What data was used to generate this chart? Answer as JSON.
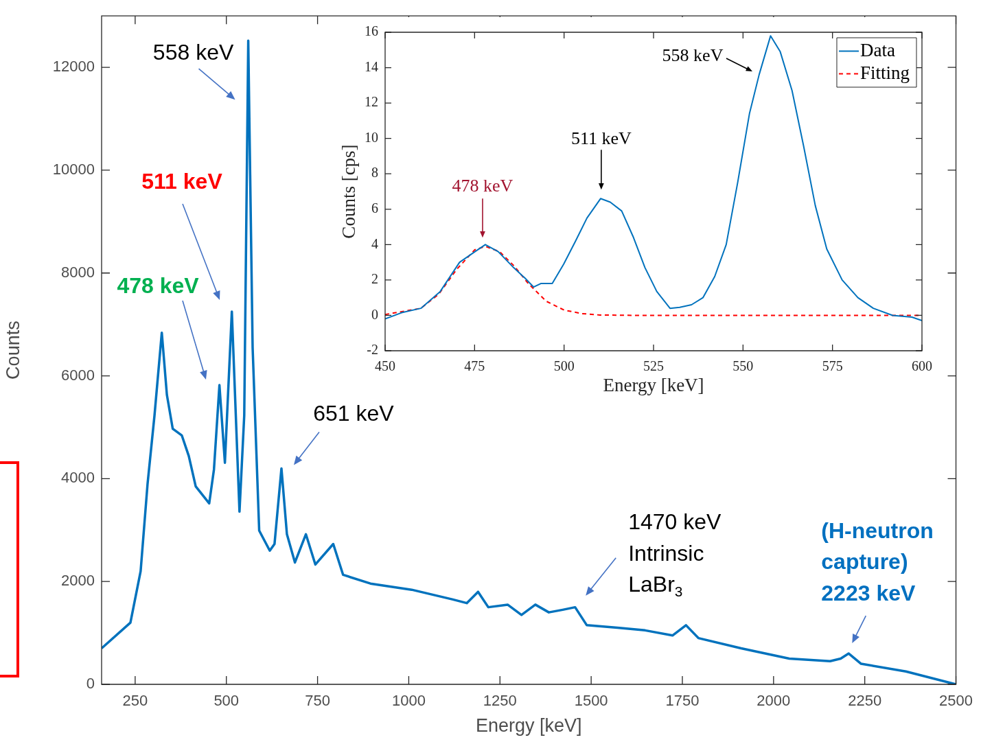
{
  "chart_data": [
    {
      "type": "line",
      "xlabel": "Energy [keV]",
      "ylabel": "Counts",
      "xlim": [
        158,
        2500
      ],
      "ylim": [
        0,
        13000
      ],
      "xticks": [
        250,
        500,
        750,
        1000,
        1250,
        1500,
        1750,
        2000,
        2250,
        2500
      ],
      "yticks": [
        0,
        2000,
        4000,
        6000,
        8000,
        10000,
        12000
      ],
      "grid": false,
      "legend": false,
      "marker": "none",
      "series": [
        {
          "color": "#0072bd",
          "x": [
            158,
            237,
            265,
            284,
            303,
            323,
            337,
            353,
            378,
            397,
            416,
            453,
            466,
            481,
            496,
            515,
            536,
            549,
            560,
            572,
            590,
            619,
            632,
            651,
            666,
            688,
            718,
            744,
            793,
            820,
            895,
            1008,
            1121,
            1159,
            1190,
            1218,
            1271,
            1309,
            1347,
            1384,
            1422,
            1456,
            1488,
            1572,
            1648,
            1723,
            1760,
            1794,
            1911,
            2043,
            2155,
            2184,
            2206,
            2240,
            2363,
            2500
          ],
          "values": [
            700,
            1200,
            2200,
            3900,
            5230,
            6840,
            5630,
            4970,
            4840,
            4440,
            3850,
            3520,
            4180,
            5820,
            4310,
            7250,
            3360,
            5230,
            12520,
            6550,
            2990,
            2600,
            2730,
            4200,
            2920,
            2370,
            2920,
            2330,
            2730,
            2130,
            1960,
            1840,
            1650,
            1580,
            1800,
            1500,
            1550,
            1350,
            1550,
            1400,
            1450,
            1500,
            1150,
            1100,
            1050,
            950,
            1150,
            900,
            700,
            500,
            450,
            500,
            600,
            400,
            250,
            0
          ]
        }
      ],
      "annotations": [
        {
          "text": "558 keV",
          "x": 558,
          "y": 12520
        },
        "511 keV",
        "478 keV",
        {
          "text": "651 keV",
          "x": 651,
          "y": 4200
        },
        {
          "text": "1470 keV\nIntrinsic\nLaBr$_{3}$",
          "x": 1470,
          "y": 1500
        },
        {
          "text": "(H-neutron\ncapture)\n2223 keV",
          "x": 2206,
          "y": 600
        }
      ]
    },
    {
      "type": "line",
      "xlabel": "Energy [keV]",
      "ylabel": "Counts [cps]",
      "xlim": [
        450,
        600
      ],
      "ylim": [
        -2,
        16
      ],
      "xticks": [
        450,
        475,
        500,
        525,
        550,
        575,
        600
      ],
      "yticks": [
        -2,
        0,
        2,
        4,
        6,
        8,
        10,
        12,
        14,
        16
      ],
      "grid": false,
      "legend": "top right",
      "marker": "none",
      "series": [
        {
          "name": "Data",
          "color": "#0072bd",
          "line_style": "solid",
          "x": [
            450,
            454.6,
            460,
            465.4,
            470.8,
            475.1,
            478,
            481.6,
            485.9,
            489.1,
            491.5,
            493.5,
            496.7,
            499.9,
            503.2,
            506.4,
            510.2,
            512.9,
            516.1,
            519.4,
            522.6,
            525.9,
            529.6,
            532.3,
            535.6,
            538.8,
            542.1,
            545.3,
            548.5,
            551.8,
            554.5,
            557.7,
            560.4,
            563.7,
            566.9,
            570.2,
            573.4,
            577.7,
            582.1,
            586.4,
            591.8,
            597.2,
            600
          ],
          "values": [
            -0.2,
            0.15,
            0.4,
            1.35,
            3.0,
            3.6,
            4.0,
            3.6,
            2.7,
            2.1,
            1.6,
            1.8,
            1.8,
            2.9,
            4.2,
            5.5,
            6.6,
            6.4,
            5.9,
            4.4,
            2.7,
            1.35,
            0.4,
            0.45,
            0.6,
            1.0,
            2.2,
            4.0,
            7.5,
            11.4,
            13.6,
            15.8,
            14.9,
            12.7,
            9.6,
            6.2,
            3.75,
            2.0,
            1.0,
            0.4,
            0,
            -0.1,
            -0.3
          ]
        },
        {
          "name": "Fitting",
          "color": "#ff0000",
          "line_style": "dashed",
          "x": [
            450,
            460,
            465,
            470,
            475,
            478,
            482,
            486,
            490,
            495,
            500,
            505,
            510,
            520,
            600
          ],
          "values": [
            0.05,
            0.4,
            1.2,
            2.6,
            3.7,
            3.9,
            3.6,
            2.8,
            1.8,
            0.8,
            0.3,
            0.1,
            0.02,
            0,
            0
          ]
        }
      ],
      "annotations": [
        {
          "text": "478 keV",
          "x": 478,
          "y": 4.0
        },
        {
          "text": "511 keV",
          "x": 510.2,
          "y": 6.6
        },
        "558 keV"
      ]
    }
  ]
}
